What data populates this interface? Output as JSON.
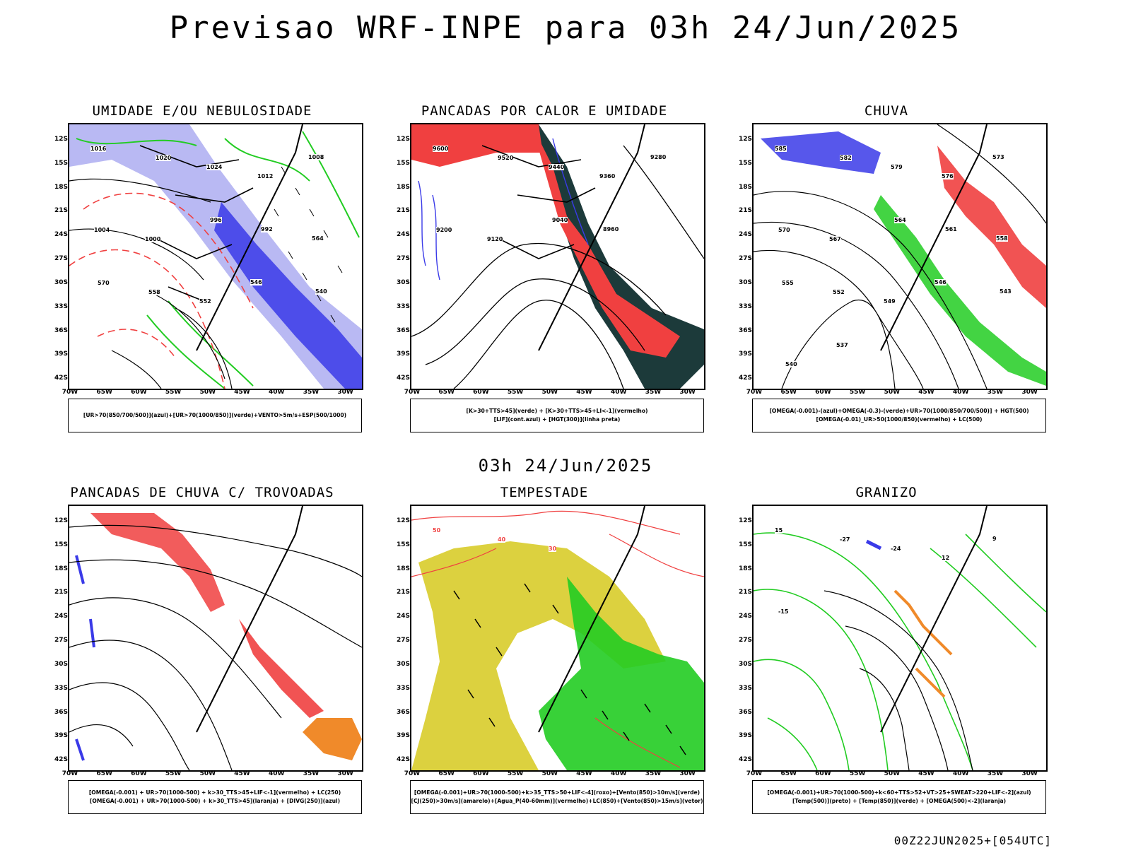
{
  "title": "Previsao WRF-INPE  para 03h 24/Jun/2025",
  "subtitle": "03h 24/Jun/2025",
  "footer": "00Z22JUN2025+[054UTC]",
  "axes": {
    "lat_labels": [
      "12S",
      "15S",
      "18S",
      "21S",
      "24S",
      "27S",
      "30S",
      "33S",
      "36S",
      "39S",
      "42S"
    ],
    "lon_labels": [
      "70W",
      "65W",
      "60W",
      "55W",
      "50W",
      "45W",
      "40W",
      "35W",
      "30W"
    ]
  },
  "panels": [
    {
      "id": "umidade",
      "title": "UMIDADE E/OU NEBULOSIDADE",
      "legend": [
        "[UR>70(850/700/500)](azul)+[UR>70(1000/850)](verde)+VENTO>5m/s+ESP(500/1000)"
      ],
      "contour_labels": [
        "1016",
        "1020",
        "1024",
        "1012",
        "1008",
        "1004",
        "1000",
        "996",
        "992",
        "564",
        "570",
        "558",
        "552",
        "546",
        "540"
      ]
    },
    {
      "id": "pancadas-calor",
      "title": "PANCADAS POR CALOR E UMIDADE",
      "legend": [
        "[K>30+TTS>45](verde) + [K>30+TTS>45+LI<-1](vermelho)",
        "[LIF](cont.azul) + [HGT(300)](linha preta)"
      ],
      "contour_labels": [
        "9600",
        "9520",
        "9440",
        "9360",
        "9280",
        "9200",
        "9120",
        "9040",
        "8960"
      ]
    },
    {
      "id": "chuva",
      "title": "CHUVA",
      "legend": [
        "[OMEGA(-0.001)-(azul)+OMEGA(-0.3)-(verde)+UR>70(1000/850/700/500)] + HGT(500)",
        "[OMEGA(-0.01)_UR>50(1000/850)(vermelho) + LC(500)"
      ],
      "contour_labels": [
        "585",
        "582",
        "579",
        "576",
        "573",
        "570",
        "567",
        "564",
        "561",
        "558",
        "555",
        "552",
        "549",
        "546",
        "543",
        "540",
        "537"
      ]
    },
    {
      "id": "trovoadas",
      "title": "PANCADAS DE CHUVA C/ TROVOADAS",
      "legend": [
        "[OMEGA(-0.001) + UR>70(1000-500) + k>30_TTS>45+LIF<-1](vermelho) + LC(250)",
        "[OMEGA(-0.001) + UR>70(1000-500) + k>30_TTS>45](laranja) + [DIVG(250)](azul)"
      ],
      "contour_labels": []
    },
    {
      "id": "tempestade",
      "title": "TEMPESTADE",
      "legend": [
        "[OMEGA(-0.001)+UR>70(1000-500)+k>35_TTS>50+LIF<-4](roxo)+[Vento(850)>10m/s](verde)",
        "[CJ(250)>30m/s](amarelo)+[Agua_P(40-60mm)](vermelho)+LC(850)+[Vento(850)>15m/s](vetor)"
      ],
      "contour_labels": [
        "50",
        "40",
        "30"
      ]
    },
    {
      "id": "granizo",
      "title": "GRANIZO",
      "legend": [
        "[OMEGA(-0.001)+UR>70(1000-500)+k<60+TTS>52+VT>25+SWEAT>220+LIF<-2](azul)",
        "[Temp(500)](preto) + [Temp(850)](verde) + [OMEGA(500)<-2](laranja)"
      ],
      "contour_labels": [
        "15",
        "-27",
        "-24",
        "12",
        "9",
        "-15"
      ]
    }
  ],
  "colors": {
    "red": "#f04040",
    "blue": "#3a3ae8",
    "lavender": "#a8a8f0",
    "green": "#22cc22",
    "darkteal": "#1c3a3a",
    "orange": "#f08a2a",
    "yellow": "#d8cc2a",
    "lightred": "#f07070"
  }
}
